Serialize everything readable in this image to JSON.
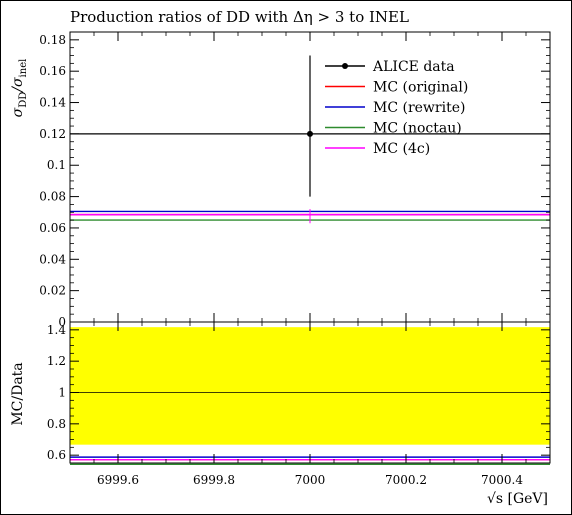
{
  "title": "Production ratios of DD with Δη > 3 to INEL",
  "ylabel_main": {
    "base": "σ",
    "sub1": "DD",
    "slash": "/σ",
    "sub2": "inel"
  },
  "ylabel_ratio": "MC/Data",
  "xlabel": "√s [GeV]",
  "colors": {
    "data": "#000000",
    "original": "#ff0000",
    "rewrite": "#0000cc",
    "noctau": "#2e8b2e",
    "4c": "#ff00ff",
    "band": "#ffff00"
  },
  "chart_data": [
    {
      "type": "line",
      "panel": "main",
      "xlim": [
        6999.5,
        7000.5
      ],
      "ylim": [
        0,
        0.185
      ],
      "xticks": [
        6999.6,
        6999.8,
        7000,
        7000.2,
        7000.4
      ],
      "yticks": [
        0,
        0.02,
        0.04,
        0.06,
        0.08,
        0.1,
        0.12,
        0.14,
        0.16,
        0.18
      ],
      "ytick_labels": [
        "0",
        "0.02",
        "0.04",
        "0.06",
        "0.08",
        "0.1",
        "0.12",
        "0.14",
        "0.16",
        "0.18"
      ],
      "legend_position": "top-right",
      "data": {
        "name": "ALICE data",
        "x": 7000,
        "y": 0.12,
        "yerr_low": 0.04,
        "yerr_high": 0.05
      },
      "series": [
        {
          "name": "MC (original)",
          "key": "original",
          "y": 0.0685
        },
        {
          "name": "MC (rewrite)",
          "key": "rewrite",
          "y": 0.0705
        },
        {
          "name": "MC (noctau)",
          "key": "noctau",
          "y": 0.065
        },
        {
          "name": "MC (4c)",
          "key": "4c",
          "y": 0.0685
        }
      ]
    },
    {
      "type": "line",
      "panel": "ratio",
      "xlim": [
        6999.5,
        7000.5
      ],
      "ylim": [
        0.55,
        1.45
      ],
      "yticks": [
        0.6,
        0.8,
        1.0,
        1.2,
        1.4
      ],
      "ytick_labels": [
        "0.6",
        "0.8",
        "1",
        "1.2",
        "1.4"
      ],
      "band": [
        0.667,
        1.417
      ],
      "reference": 1,
      "series": [
        {
          "key": "original",
          "y": 0.571
        },
        {
          "key": "rewrite",
          "y": 0.5875
        },
        {
          "key": "noctau",
          "y": 0.5417
        },
        {
          "key": "4c",
          "y": 0.571
        }
      ]
    }
  ]
}
